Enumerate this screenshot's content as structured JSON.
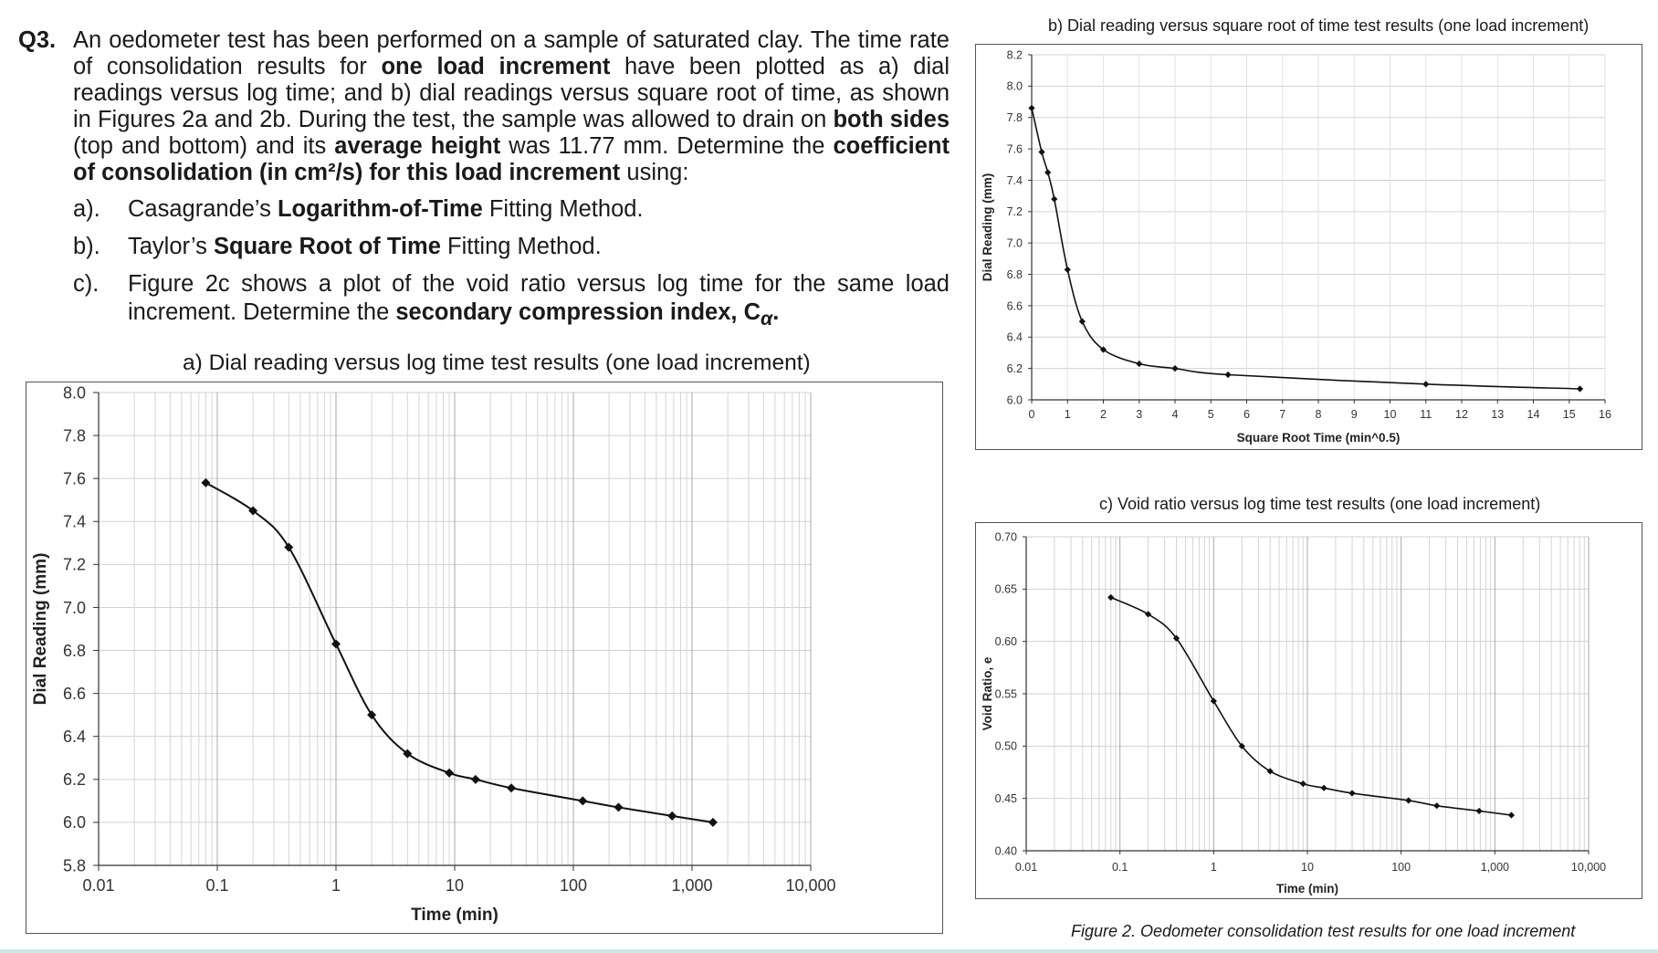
{
  "question": {
    "number": "Q3.",
    "main_parts": [
      {
        "t": "An oedometer test has been performed on a sample of saturated clay. The time rate of consolidation results for ",
        "b": false
      },
      {
        "t": "one load increment",
        "b": true
      },
      {
        "t": " have been plotted as a) dial readings versus log time; and b) dial readings versus square root of time, as shown in Figures 2a and 2b. During the test, the sample was allowed to drain on ",
        "b": false
      },
      {
        "t": "both sides",
        "b": true
      },
      {
        "t": " (top and bottom) and its ",
        "b": false
      },
      {
        "t": "average height",
        "b": true
      },
      {
        "t": " was 11.77 mm. Determine the ",
        "b": false
      },
      {
        "t": "coefficient of consolidation (in cm²/s) for this load increment",
        "b": true
      },
      {
        "t": " using:",
        "b": false
      }
    ],
    "items": [
      {
        "label": "a).",
        "parts": [
          {
            "t": "Casagrande’s ",
            "b": false
          },
          {
            "t": "Logarithm-of-Time",
            "b": true
          },
          {
            "t": " Fitting Method.",
            "b": false
          }
        ]
      },
      {
        "label": "b).",
        "parts": [
          {
            "t": "Taylor’s ",
            "b": false
          },
          {
            "t": "Square Root of Time",
            "b": true
          },
          {
            "t": " Fitting Method.",
            "b": false
          }
        ]
      },
      {
        "label": "c).",
        "parts": [
          {
            "t": "Figure 2c shows a plot of the void ratio versus log time for the same load increment. Determine the ",
            "b": false
          },
          {
            "t": "secondary compression index, C",
            "b": true
          },
          {
            "t": "α",
            "b": true,
            "sub": true
          },
          {
            "t": ".",
            "b": true
          }
        ]
      }
    ]
  },
  "figure_caption": "Figure 2. Oedometer consolidation test results for one load increment",
  "chart_data": [
    {
      "id": "a",
      "type": "line",
      "title": "a)  Dial reading versus log time test results (one load increment)",
      "xlabel": "Time (min)",
      "ylabel": "Dial Reading (mm)",
      "xscale": "log",
      "xlim": [
        0.01,
        10000
      ],
      "ylim": [
        5.8,
        8.0
      ],
      "xticks": [
        {
          "v": 0.01,
          "label": "0.01"
        },
        {
          "v": 0.1,
          "label": "0.1"
        },
        {
          "v": 1,
          "label": "1"
        },
        {
          "v": 10,
          "label": "10"
        },
        {
          "v": 100,
          "label": "100"
        },
        {
          "v": 1000,
          "label": "1,000"
        },
        {
          "v": 10000,
          "label": "10,000"
        }
      ],
      "yticks": [
        {
          "v": 5.8,
          "label": "5.8"
        },
        {
          "v": 6.0,
          "label": "6.0"
        },
        {
          "v": 6.2,
          "label": "6.2"
        },
        {
          "v": 6.4,
          "label": "6.4"
        },
        {
          "v": 6.6,
          "label": "6.6"
        },
        {
          "v": 6.8,
          "label": "6.8"
        },
        {
          "v": 7.0,
          "label": "7.0"
        },
        {
          "v": 7.2,
          "label": "7.2"
        },
        {
          "v": 7.4,
          "label": "7.4"
        },
        {
          "v": 7.6,
          "label": "7.6"
        },
        {
          "v": 7.8,
          "label": "7.8"
        },
        {
          "v": 8.0,
          "label": "8.0"
        }
      ],
      "grid": true,
      "series": [
        {
          "x": [
            0.08,
            0.2,
            0.4,
            1,
            2,
            4,
            9,
            15,
            30,
            120,
            240,
            680,
            1500
          ],
          "y": [
            7.58,
            7.45,
            7.28,
            6.83,
            6.5,
            6.32,
            6.23,
            6.2,
            6.16,
            6.1,
            6.07,
            6.03,
            6.0
          ]
        }
      ]
    },
    {
      "id": "b",
      "type": "line",
      "title": "b)  Dial reading versus square root of time test results (one load increment)",
      "xlabel": "Square Root Time (min^0.5)",
      "ylabel": "Dial Reading (mm)",
      "xscale": "linear",
      "xlim": [
        0,
        16
      ],
      "ylim": [
        6.0,
        8.2
      ],
      "xticks": [
        {
          "v": 0,
          "label": "0"
        },
        {
          "v": 1,
          "label": "1"
        },
        {
          "v": 2,
          "label": "2"
        },
        {
          "v": 3,
          "label": "3"
        },
        {
          "v": 4,
          "label": "4"
        },
        {
          "v": 5,
          "label": "5"
        },
        {
          "v": 6,
          "label": "6"
        },
        {
          "v": 7,
          "label": "7"
        },
        {
          "v": 8,
          "label": "8"
        },
        {
          "v": 9,
          "label": "9"
        },
        {
          "v": 10,
          "label": "10"
        },
        {
          "v": 11,
          "label": "11"
        },
        {
          "v": 12,
          "label": "12"
        },
        {
          "v": 13,
          "label": "13"
        },
        {
          "v": 14,
          "label": "14"
        },
        {
          "v": 15,
          "label": "15"
        },
        {
          "v": 16,
          "label": "16"
        }
      ],
      "yticks": [
        {
          "v": 6.0,
          "label": "6.0"
        },
        {
          "v": 6.2,
          "label": "6.2"
        },
        {
          "v": 6.4,
          "label": "6.4"
        },
        {
          "v": 6.6,
          "label": "6.6"
        },
        {
          "v": 6.8,
          "label": "6.8"
        },
        {
          "v": 7.0,
          "label": "7.0"
        },
        {
          "v": 7.2,
          "label": "7.2"
        },
        {
          "v": 7.4,
          "label": "7.4"
        },
        {
          "v": 7.6,
          "label": "7.6"
        },
        {
          "v": 7.8,
          "label": "7.8"
        },
        {
          "v": 8.0,
          "label": "8.0"
        },
        {
          "v": 8.2,
          "label": "8.2"
        }
      ],
      "grid": true,
      "series": [
        {
          "x": [
            0,
            0.28,
            0.45,
            0.63,
            1,
            1.41,
            2,
            3,
            4,
            5.48,
            11,
            15.3
          ],
          "y": [
            7.86,
            7.58,
            7.45,
            7.28,
            6.83,
            6.5,
            6.32,
            6.23,
            6.2,
            6.16,
            6.1,
            6.07
          ]
        }
      ]
    },
    {
      "id": "c",
      "type": "line",
      "title": "c)  Void ratio versus log time test results (one load increment)",
      "xlabel": "Time (min)",
      "ylabel": "Void Ratio, e",
      "xscale": "log",
      "xlim": [
        0.01,
        10000
      ],
      "ylim": [
        0.4,
        0.7
      ],
      "xticks": [
        {
          "v": 0.01,
          "label": "0.01"
        },
        {
          "v": 0.1,
          "label": "0.1"
        },
        {
          "v": 1,
          "label": "1"
        },
        {
          "v": 10,
          "label": "10"
        },
        {
          "v": 100,
          "label": "100"
        },
        {
          "v": 1000,
          "label": "1,000"
        },
        {
          "v": 10000,
          "label": "10,000"
        }
      ],
      "yticks": [
        {
          "v": 0.4,
          "label": "0.40"
        },
        {
          "v": 0.45,
          "label": "0.45"
        },
        {
          "v": 0.5,
          "label": "0.50"
        },
        {
          "v": 0.55,
          "label": "0.55"
        },
        {
          "v": 0.6,
          "label": "0.60"
        },
        {
          "v": 0.65,
          "label": "0.65"
        },
        {
          "v": 0.7,
          "label": "0.70"
        }
      ],
      "grid": true,
      "series": [
        {
          "x": [
            0.08,
            0.2,
            0.4,
            1,
            2,
            4,
            9,
            15,
            30,
            120,
            240,
            680,
            1500
          ],
          "y": [
            0.642,
            0.626,
            0.603,
            0.543,
            0.5,
            0.476,
            0.464,
            0.46,
            0.455,
            0.448,
            0.443,
            0.438,
            0.434
          ]
        }
      ]
    }
  ]
}
